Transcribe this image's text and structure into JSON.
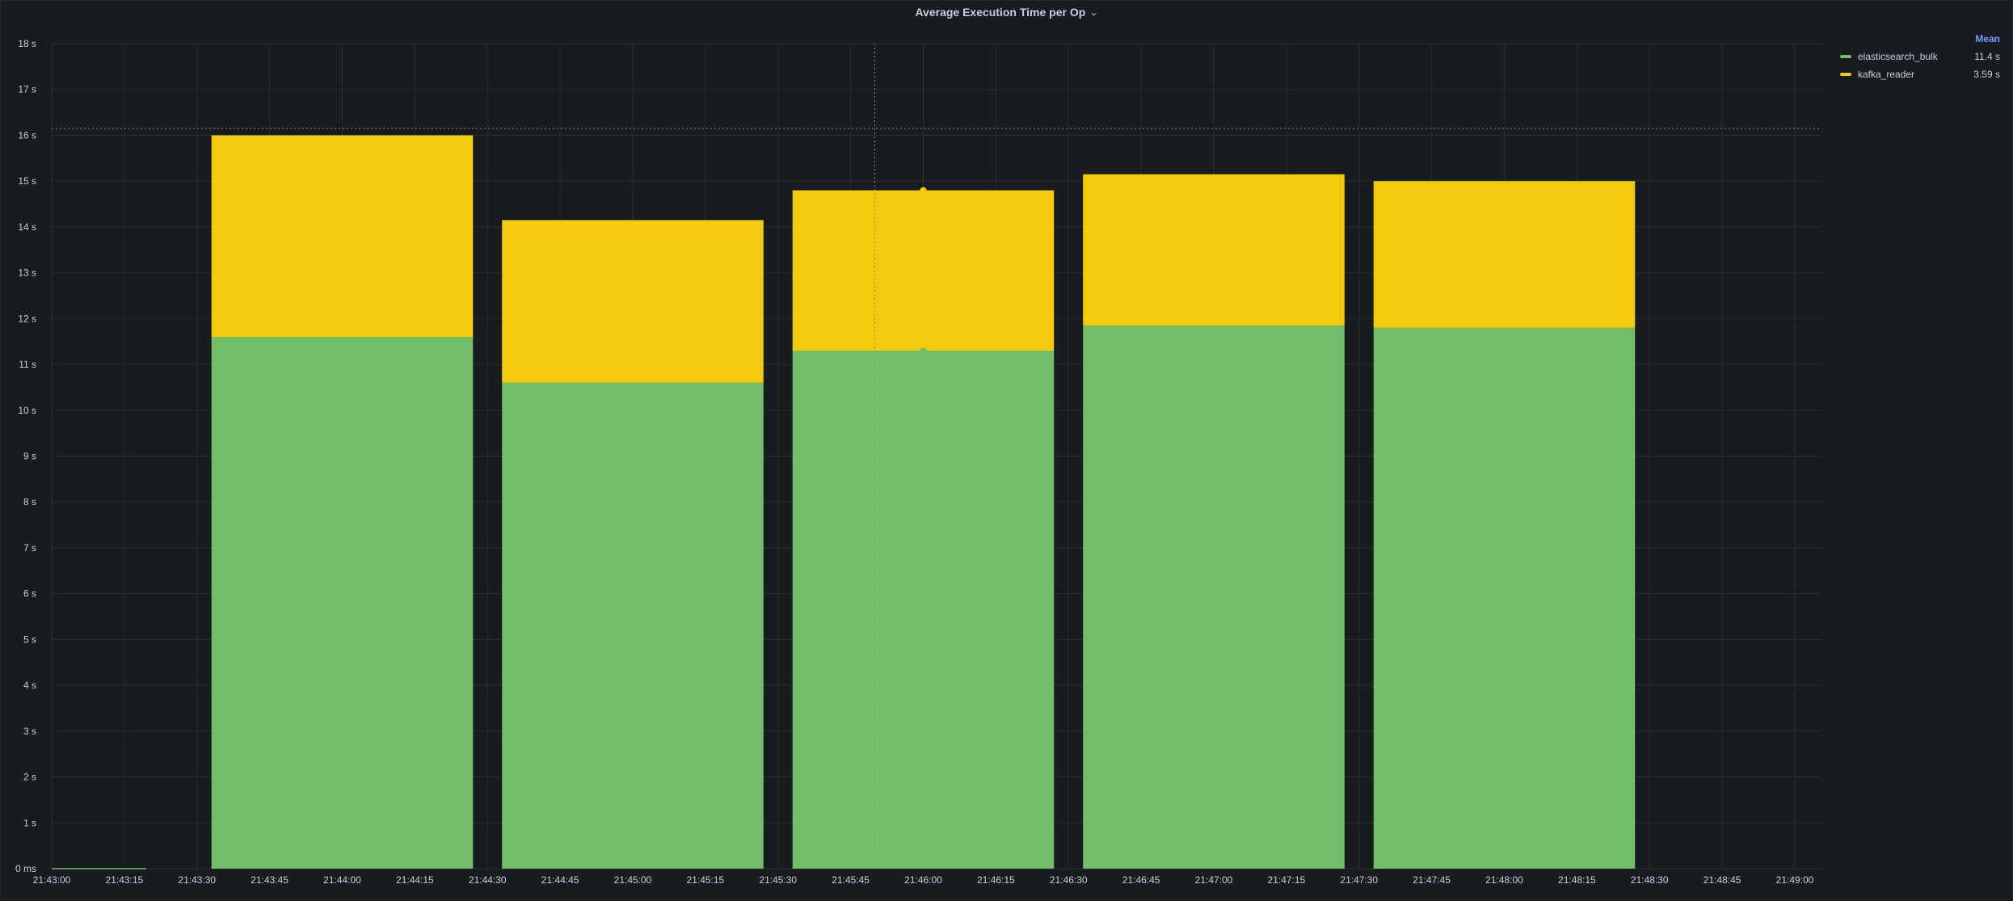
{
  "panel": {
    "title": "Average Execution Time per Op",
    "menu_icon": "chevron-down-icon"
  },
  "legend": {
    "header": "Mean",
    "items": [
      {
        "name": "elasticsearch_bulk",
        "value": "11.4 s",
        "color": "#73bf69"
      },
      {
        "name": "kafka_reader",
        "value": "3.59 s",
        "color": "#f2cc0c"
      }
    ]
  },
  "colors": {
    "background": "#181b1f",
    "grid": "#2a2d33",
    "elasticsearch_bulk": "#73bf69",
    "kafka_reader": "#f2cc0c"
  },
  "chart_data": {
    "type": "bar",
    "stacked": true,
    "title": "Average Execution Time per Op",
    "xlabel": "",
    "ylabel": "",
    "x_ticks": [
      "21:43:00",
      "21:43:15",
      "21:43:30",
      "21:43:45",
      "21:44:00",
      "21:44:15",
      "21:44:30",
      "21:44:45",
      "21:45:00",
      "21:45:15",
      "21:45:30",
      "21:45:45",
      "21:46:00",
      "21:46:15",
      "21:46:30",
      "21:46:45",
      "21:47:00",
      "21:47:15",
      "21:47:30",
      "21:47:45",
      "21:48:00",
      "21:48:15",
      "21:48:30",
      "21:48:45",
      "21:49:00"
    ],
    "y_ticks": [
      "0 ms",
      "1 s",
      "2 s",
      "3 s",
      "4 s",
      "5 s",
      "6 s",
      "7 s",
      "8 s",
      "9 s",
      "10 s",
      "11 s",
      "12 s",
      "13 s",
      "14 s",
      "15 s",
      "16 s",
      "17 s",
      "18 s"
    ],
    "ylim": [
      0,
      18
    ],
    "categories": [
      "21:44:00",
      "21:45:00",
      "21:46:00",
      "21:47:00",
      "21:48:00"
    ],
    "series": [
      {
        "name": "elasticsearch_bulk",
        "values": [
          11.6,
          10.6,
          11.3,
          11.85,
          11.8
        ]
      },
      {
        "name": "kafka_reader",
        "values": [
          4.4,
          3.55,
          3.5,
          3.3,
          3.2
        ]
      }
    ],
    "threshold_line": 16.15,
    "cursor_time": "21:45:50",
    "grid": true,
    "legend_position": "right"
  }
}
